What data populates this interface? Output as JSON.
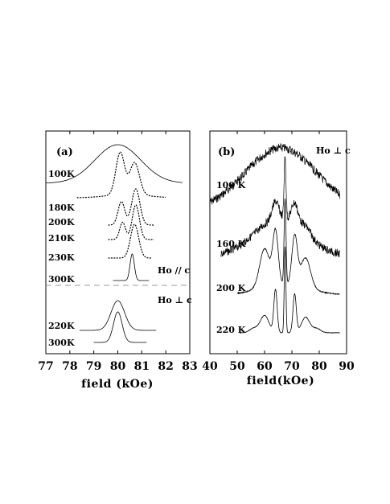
{
  "chart_data": [
    {
      "type": "line",
      "panel_label": "(a)",
      "xlabel": "field  (kOe)",
      "xlim": [
        77,
        83
      ],
      "xticks": [
        "77",
        "78",
        "79",
        "80",
        "81",
        "82",
        "83"
      ],
      "annotations": [
        "Ho // c",
        "Ho ⊥ c"
      ],
      "series": [
        {
          "name": "100K",
          "orientation": "Ho // c",
          "center_kOe": 80.0,
          "fwhm_kOe": 2.0,
          "style": "solid"
        },
        {
          "name": "180K",
          "orientation": "Ho // c",
          "peaks_kOe": [
            80.1,
            80.7
          ],
          "style": "dashed"
        },
        {
          "name": "200K",
          "orientation": "Ho // c",
          "peaks_kOe": [
            80.15,
            80.75
          ],
          "style": "dashed"
        },
        {
          "name": "210K",
          "orientation": "Ho // c",
          "peaks_kOe": [
            80.2,
            80.75
          ],
          "style": "dashed"
        },
        {
          "name": "230K",
          "orientation": "Ho // c",
          "peaks_kOe": [
            80.7
          ],
          "style": "dashed"
        },
        {
          "name": "300K",
          "orientation": "Ho // c",
          "peaks_kOe": [
            80.6
          ],
          "style": "solid"
        },
        {
          "name": "220K",
          "orientation": "Ho ⊥ c",
          "peaks_kOe": [
            80.0
          ],
          "style": "solid"
        },
        {
          "name": "300K",
          "orientation": "Ho ⊥ c",
          "peaks_kOe": [
            80.0
          ],
          "style": "solid"
        }
      ]
    },
    {
      "type": "line",
      "panel_label": "(b)",
      "xlabel": "field(kOe)",
      "xlim": [
        40,
        90
      ],
      "xticks": [
        "40",
        "50",
        "60",
        "70",
        "80",
        "90"
      ],
      "annotations": [
        "Ho ⊥ c"
      ],
      "series": [
        {
          "name": "100 K",
          "center_kOe": 66,
          "fwhm_kOe": 36,
          "style": "noisy"
        },
        {
          "name": "160 K",
          "peaks_kOe": [
            60,
            64,
            67.5,
            71,
            75
          ],
          "style": "noisy"
        },
        {
          "name": "200 K",
          "peaks_kOe": [
            60,
            64,
            67.5,
            71,
            75
          ],
          "style": "solid"
        },
        {
          "name": "220 K",
          "peaks_kOe": [
            60,
            64,
            67.5,
            71,
            75
          ],
          "style": "solid"
        }
      ]
    }
  ]
}
